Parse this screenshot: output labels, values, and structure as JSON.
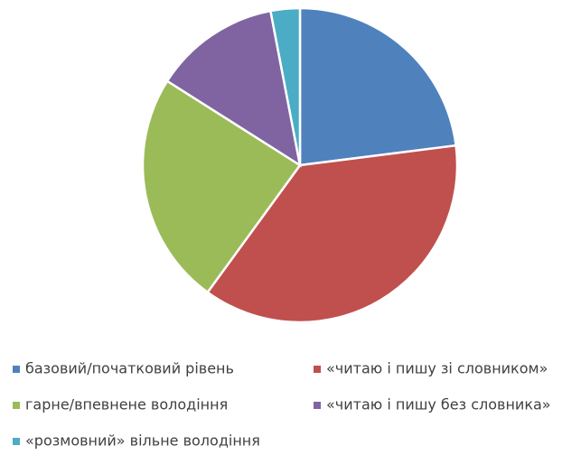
{
  "chart_data": {
    "type": "pie",
    "categories": [
      "базовий/початковий рівень",
      "«читаю і пишу зі словником»",
      "гарне/впевнене володіння",
      "«читаю і пишу без словника»",
      "«розмовний» вільне володіння"
    ],
    "values": [
      23,
      37,
      24,
      13,
      3
    ],
    "colors": [
      "#4f81bd",
      "#c0504d",
      "#9bbb59",
      "#8064a2",
      "#4bacc6"
    ],
    "legend": "bottom"
  }
}
